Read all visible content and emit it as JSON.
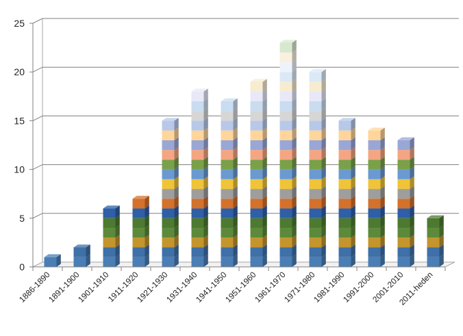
{
  "chart_data": {
    "type": "bar",
    "stacked": true,
    "three_d": true,
    "categories": [
      "1886-1890",
      "1891-1900",
      "1901-1910",
      "1911-1920",
      "1921-1930",
      "1931-1940",
      "1941-1950",
      "1951-1960",
      "1961-1970",
      "1971-1980",
      "1981-1990",
      "1991-2000",
      "2001-2010",
      "2011-heden"
    ],
    "values": [
      1,
      2,
      6,
      7,
      15,
      18,
      17,
      19,
      23,
      20,
      15,
      14,
      13,
      5
    ],
    "ylim": [
      0,
      25
    ],
    "yticks": [
      0,
      5,
      10,
      15,
      20,
      25
    ],
    "grid": true,
    "legend": "none",
    "segment_colors": [
      "#4a7eb5",
      "#3f70a8",
      "#c4952c",
      "#5c8a3a",
      "#4d7a30",
      "#2f5fa6",
      "#d4712b",
      "#9e9e9e",
      "#f0c438",
      "#6a9ad0",
      "#7aa04a",
      "#f4a582",
      "#9aa7d6",
      "#ffd59a",
      "#b7c8e8",
      "#d6d6d6",
      "#c9dcf0",
      "#e8e8f8",
      "#f7ecd0",
      "#dbe9f7",
      "#eef3fb",
      "#f9f0df",
      "#d8e8cf"
    ]
  }
}
